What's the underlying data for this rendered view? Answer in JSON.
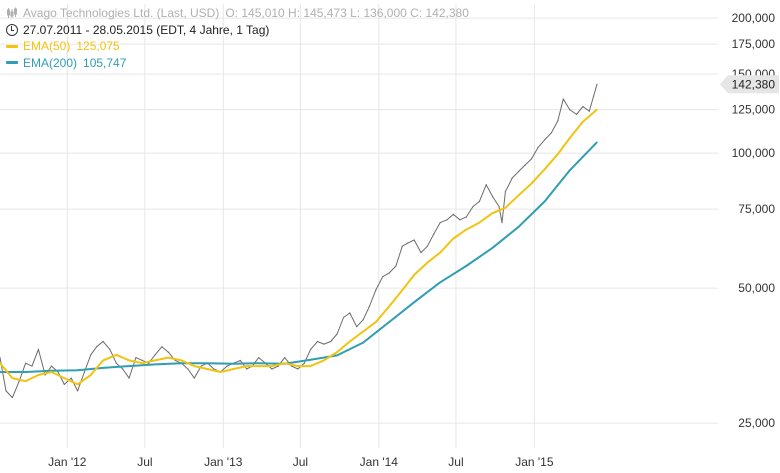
{
  "legend": {
    "title": "Avago Technologies Ltd. (Last, USD)",
    "ohlc": "O: 145,010  H: 145,473  L: 136,000  C: 142,380",
    "period": "27.07.2011 - 28.05.2015 (EDT, 4 Jahre, 1 Tag)",
    "ema50_label": "EMA(50)",
    "ema50_value": "125,075",
    "ema200_label": "EMA(200)",
    "ema200_value": "105,747",
    "icons": [
      "candlestick-icon",
      "clock-icon"
    ]
  },
  "last_price_label": "142,380",
  "colors": {
    "price": "#6e6a6a",
    "ema50": "#f2c311",
    "ema200": "#2f9db3",
    "grid": "#e6e6e6",
    "text": "#333333",
    "tag_bg": "#e6e6e6"
  },
  "chart_data": {
    "type": "line",
    "title": "Avago Technologies Ltd. (Last, USD)",
    "xlabel": "",
    "ylabel": "",
    "y_scale": "log",
    "grid": true,
    "legend_position": "top-left",
    "y_axis_position": "right",
    "ylim": [
      22000,
      215000
    ],
    "xlim": [
      "2011-07-27",
      "2015-05-28"
    ],
    "x_ticks": [
      {
        "date": "2012-01-01",
        "label": "Jan '12"
      },
      {
        "date": "2012-07-01",
        "label": "Jul"
      },
      {
        "date": "2013-01-01",
        "label": "Jan '13"
      },
      {
        "date": "2013-07-01",
        "label": "Jul"
      },
      {
        "date": "2014-01-01",
        "label": "Jan '14"
      },
      {
        "date": "2014-07-01",
        "label": "Jul"
      },
      {
        "date": "2015-01-01",
        "label": "Jan '15"
      }
    ],
    "y_ticks": [
      {
        "value": 25000,
        "label": "25,000"
      },
      {
        "value": 50000,
        "label": "50,000"
      },
      {
        "value": 75000,
        "label": "75,000"
      },
      {
        "value": 100000,
        "label": "100,000"
      },
      {
        "value": 125000,
        "label": "125,000"
      },
      {
        "value": 150000,
        "label": "150,000"
      },
      {
        "value": 175000,
        "label": "175,000"
      },
      {
        "value": 200000,
        "label": "200,000"
      }
    ],
    "series": [
      {
        "name": "Avago Technologies Ltd. (Last, USD)",
        "x": [
          "2011-07-27",
          "2011-08-10",
          "2011-08-25",
          "2011-09-10",
          "2011-09-25",
          "2011-10-10",
          "2011-10-25",
          "2011-11-10",
          "2011-11-25",
          "2011-12-10",
          "2011-12-25",
          "2012-01-10",
          "2012-01-25",
          "2012-02-10",
          "2012-02-25",
          "2012-03-10",
          "2012-03-25",
          "2012-04-10",
          "2012-04-25",
          "2012-05-10",
          "2012-05-25",
          "2012-06-10",
          "2012-06-25",
          "2012-07-10",
          "2012-07-25",
          "2012-08-10",
          "2012-08-25",
          "2012-09-10",
          "2012-09-25",
          "2012-10-10",
          "2012-10-25",
          "2012-11-10",
          "2012-11-25",
          "2012-12-10",
          "2012-12-25",
          "2013-01-10",
          "2013-01-25",
          "2013-02-10",
          "2013-02-25",
          "2013-03-10",
          "2013-03-25",
          "2013-04-10",
          "2013-04-25",
          "2013-05-10",
          "2013-05-25",
          "2013-06-10",
          "2013-06-25",
          "2013-07-10",
          "2013-07-25",
          "2013-08-10",
          "2013-08-25",
          "2013-09-10",
          "2013-09-25",
          "2013-10-10",
          "2013-10-25",
          "2013-11-10",
          "2013-11-25",
          "2013-12-10",
          "2013-12-25",
          "2014-01-10",
          "2014-01-25",
          "2014-02-10",
          "2014-02-25",
          "2014-03-10",
          "2014-03-25",
          "2014-04-10",
          "2014-04-25",
          "2014-05-10",
          "2014-05-25",
          "2014-06-10",
          "2014-06-25",
          "2014-07-10",
          "2014-07-25",
          "2014-08-10",
          "2014-08-25",
          "2014-09-10",
          "2014-09-25",
          "2014-10-10",
          "2014-10-17",
          "2014-10-25",
          "2014-11-10",
          "2014-11-25",
          "2014-12-10",
          "2014-12-25",
          "2015-01-10",
          "2015-01-25",
          "2015-02-10",
          "2015-02-25",
          "2015-03-10",
          "2015-03-25",
          "2015-04-10",
          "2015-04-25",
          "2015-05-10",
          "2015-05-20",
          "2015-05-28"
        ],
        "values": [
          35000,
          29500,
          28500,
          31000,
          34000,
          33500,
          36500,
          32000,
          33500,
          32500,
          30500,
          31500,
          29500,
          32500,
          35500,
          37000,
          38000,
          36500,
          34000,
          33000,
          31500,
          35000,
          34500,
          34000,
          35500,
          37000,
          36000,
          34500,
          34000,
          33000,
          31500,
          33500,
          34000,
          33000,
          32500,
          33500,
          34000,
          34500,
          33000,
          33500,
          35000,
          34000,
          33000,
          33500,
          35000,
          33500,
          33000,
          34000,
          36500,
          38000,
          37500,
          38000,
          39500,
          43000,
          44000,
          41000,
          42500,
          45500,
          49500,
          53000,
          54000,
          56000,
          62000,
          63000,
          64000,
          60000,
          62000,
          66000,
          70000,
          71000,
          73000,
          71000,
          72000,
          76000,
          78000,
          85000,
          80000,
          76000,
          70000,
          82000,
          88000,
          91000,
          94000,
          97000,
          103000,
          107000,
          111000,
          118000,
          132000,
          125000,
          122000,
          127000,
          124000,
          134000,
          142380
        ]
      },
      {
        "name": "EMA(50)",
        "x": [
          "2011-07-27",
          "2011-08-25",
          "2011-09-25",
          "2011-10-25",
          "2011-11-25",
          "2011-12-25",
          "2012-01-25",
          "2012-02-25",
          "2012-03-25",
          "2012-04-25",
          "2012-05-25",
          "2012-06-25",
          "2012-07-25",
          "2012-08-25",
          "2012-09-25",
          "2012-10-25",
          "2012-11-25",
          "2012-12-25",
          "2013-01-25",
          "2013-02-25",
          "2013-03-25",
          "2013-04-25",
          "2013-05-25",
          "2013-06-25",
          "2013-07-25",
          "2013-08-25",
          "2013-09-25",
          "2013-10-25",
          "2013-11-25",
          "2013-12-25",
          "2014-01-25",
          "2014-02-25",
          "2014-03-25",
          "2014-04-25",
          "2014-05-25",
          "2014-06-25",
          "2014-07-25",
          "2014-08-25",
          "2014-09-25",
          "2014-10-25",
          "2014-11-25",
          "2014-12-25",
          "2015-01-25",
          "2015-02-25",
          "2015-03-25",
          "2015-04-25",
          "2015-05-28"
        ],
        "values": [
          34000,
          31500,
          31000,
          32000,
          32500,
          31500,
          30500,
          32000,
          34500,
          35500,
          34500,
          34000,
          34500,
          35000,
          34500,
          33500,
          33000,
          32500,
          33000,
          33500,
          33500,
          33500,
          34000,
          33500,
          33500,
          34500,
          36000,
          38000,
          40000,
          42000,
          45500,
          49500,
          53500,
          57000,
          60000,
          64500,
          67500,
          70000,
          73500,
          75500,
          80500,
          85500,
          92000,
          99500,
          108000,
          117500,
          125075
        ]
      },
      {
        "name": "EMA(200)",
        "x": [
          "2011-07-27",
          "2011-09-25",
          "2011-11-25",
          "2012-01-25",
          "2012-03-25",
          "2012-05-25",
          "2012-07-25",
          "2012-09-25",
          "2012-11-25",
          "2013-01-25",
          "2013-03-25",
          "2013-05-25",
          "2013-07-25",
          "2013-09-25",
          "2013-11-25",
          "2014-01-25",
          "2014-03-25",
          "2014-05-25",
          "2014-07-25",
          "2014-09-25",
          "2014-11-25",
          "2015-01-25",
          "2015-03-25",
          "2015-05-28"
        ],
        "values": [
          32500,
          32500,
          32700,
          32800,
          33200,
          33500,
          33800,
          34000,
          34000,
          33900,
          34000,
          33900,
          34600,
          35400,
          37800,
          42000,
          46500,
          51500,
          56000,
          61500,
          68500,
          78000,
          91500,
          105747
        ]
      }
    ]
  }
}
